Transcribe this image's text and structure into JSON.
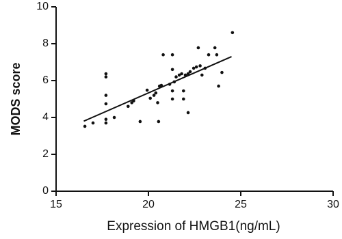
{
  "chart_data": {
    "type": "scatter",
    "x_label": "Expression of HMGB1(ng/mL)",
    "y_label": "MODS score",
    "x": [
      16.56,
      17.0,
      17.7,
      17.7,
      17.7,
      17.7,
      17.7,
      17.7,
      18.15,
      18.9,
      19.1,
      19.2,
      19.55,
      19.93,
      20.1,
      20.3,
      20.5,
      20.55,
      20.4,
      20.6,
      20.7,
      20.8,
      21.15,
      21.3,
      21.3,
      21.3,
      21.3,
      21.4,
      21.5,
      21.67,
      21.8,
      21.9,
      21.9,
      22.0,
      22.15,
      22.15,
      22.26,
      22.45,
      22.6,
      22.7,
      22.8,
      22.9,
      23.07,
      23.26,
      23.6,
      23.7,
      23.8,
      23.98,
      24.55
    ],
    "y": [
      3.52,
      3.7,
      6.37,
      6.2,
      5.2,
      4.74,
      3.9,
      3.7,
      4.0,
      4.6,
      4.8,
      4.9,
      3.78,
      5.48,
      5.04,
      5.2,
      4.8,
      3.78,
      5.33,
      5.7,
      5.74,
      7.4,
      5.8,
      7.4,
      6.6,
      5.44,
      5.0,
      5.93,
      6.2,
      6.3,
      6.37,
      5.44,
      5.0,
      6.3,
      6.37,
      4.26,
      6.48,
      6.67,
      6.74,
      7.78,
      6.8,
      6.3,
      6.67,
      7.4,
      7.78,
      7.4,
      5.7,
      6.44,
      8.6
    ],
    "color": "#111111",
    "fit": {
      "x": [
        16.5,
        24.5
      ],
      "y": [
        3.8,
        7.3
      ]
    },
    "xlim": [
      15,
      30
    ],
    "xticks": [
      15,
      20,
      25,
      30
    ],
    "ylim": [
      0,
      10
    ],
    "yticks": [
      0,
      2,
      4,
      6,
      8,
      10
    ]
  }
}
